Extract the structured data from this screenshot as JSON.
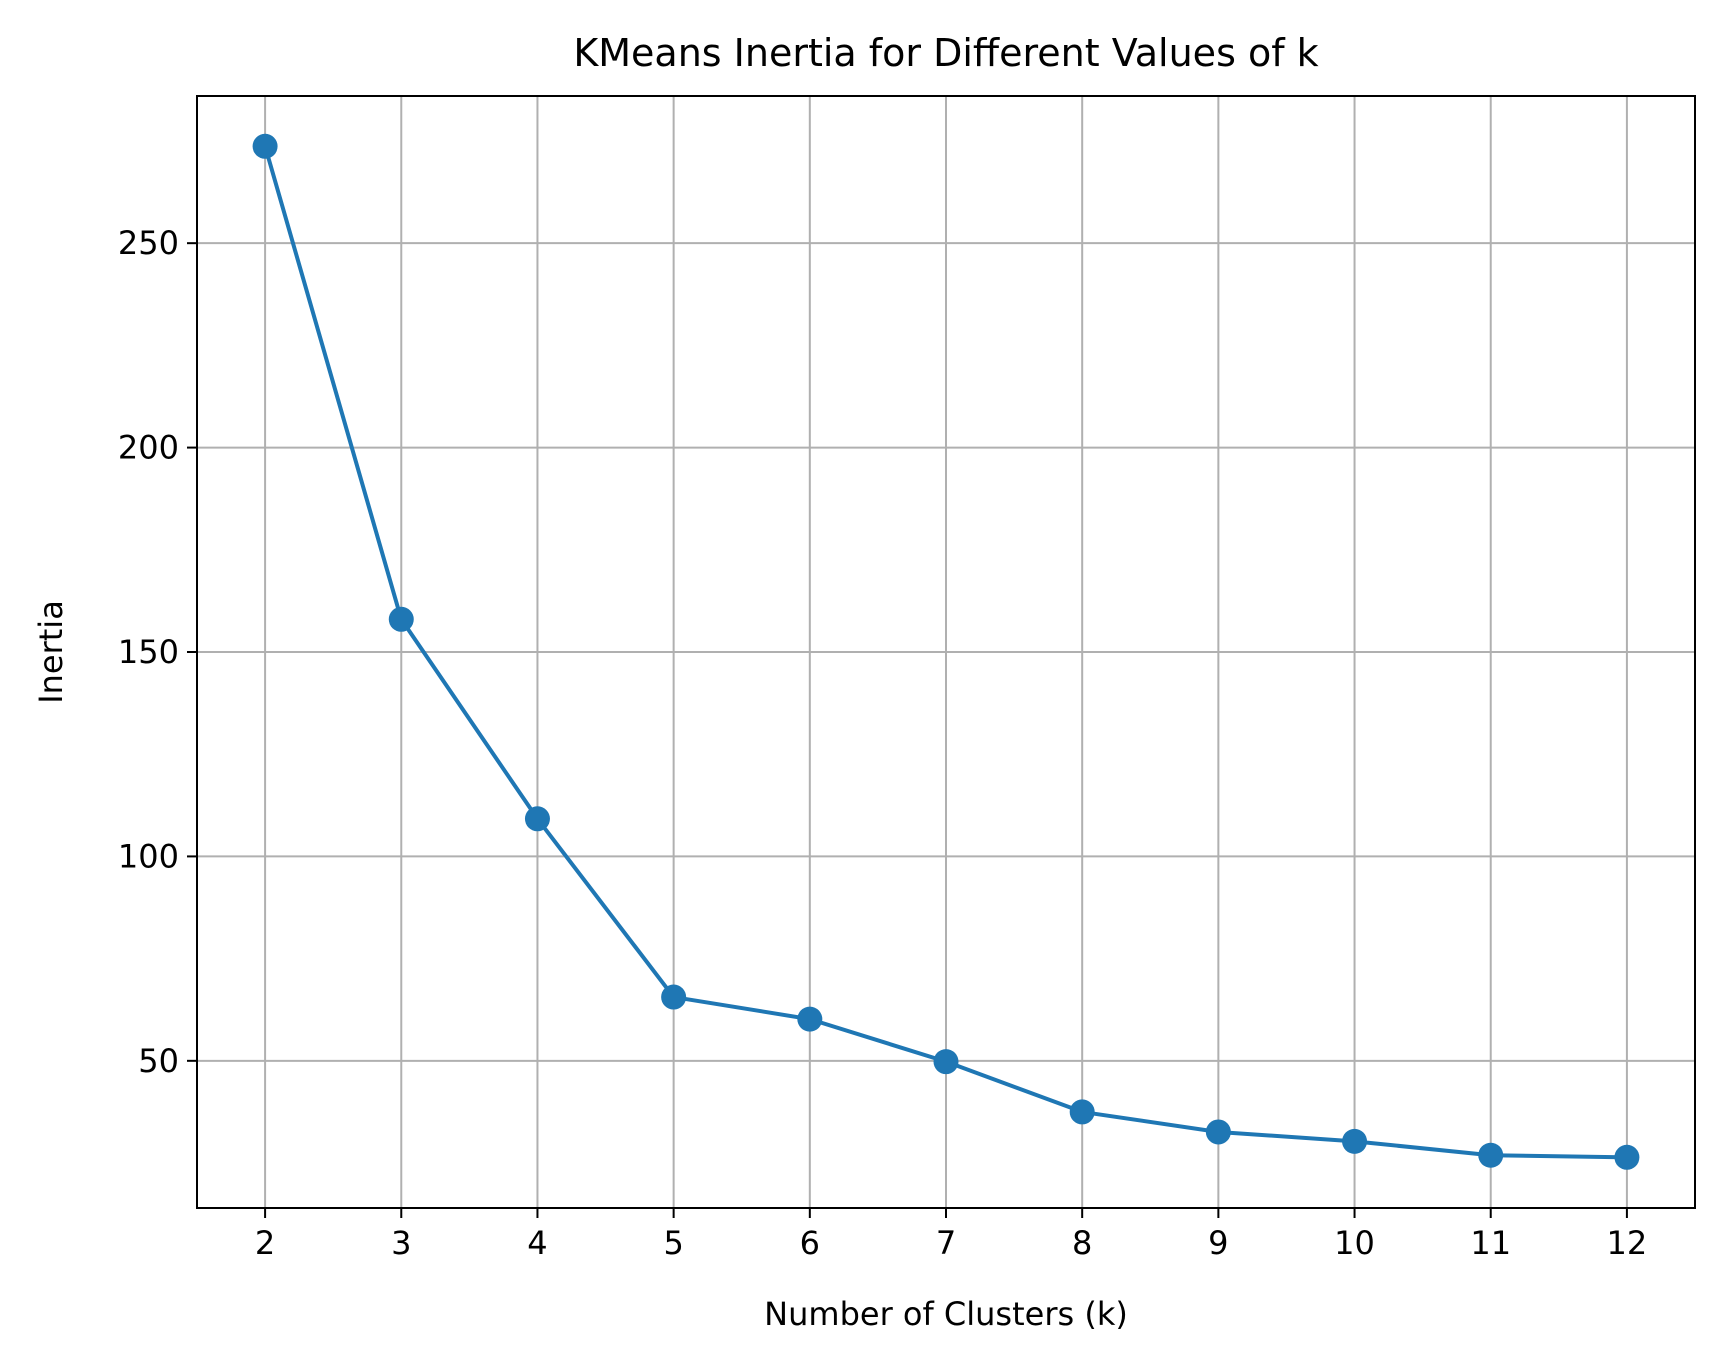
{
  "chart_data": {
    "type": "line",
    "title": "KMeans Inertia for Different Values of k",
    "xlabel": "Number of Clusters (k)",
    "ylabel": "Inertia",
    "x": [
      2,
      3,
      4,
      5,
      6,
      7,
      8,
      9,
      10,
      11,
      12
    ],
    "series": [
      {
        "values": [
          273.7,
          158.0,
          109.2,
          65.6,
          60.2,
          49.8,
          37.5,
          32.6,
          30.3,
          26.9,
          26.4
        ],
        "color": "#1f77b4",
        "marker": "circle"
      }
    ],
    "xticks": [
      "2",
      "3",
      "4",
      "5",
      "6",
      "7",
      "8",
      "9",
      "10",
      "11",
      "12"
    ],
    "yticks": [
      50,
      100,
      150,
      200,
      250
    ],
    "ytick_labels": [
      "50",
      "100",
      "150",
      "200",
      "250"
    ],
    "xlim": [
      1.5,
      12.5
    ],
    "ylim": [
      14.0,
      286.0
    ],
    "grid": true,
    "grid_color": "#b0b0b0",
    "legend": false
  }
}
